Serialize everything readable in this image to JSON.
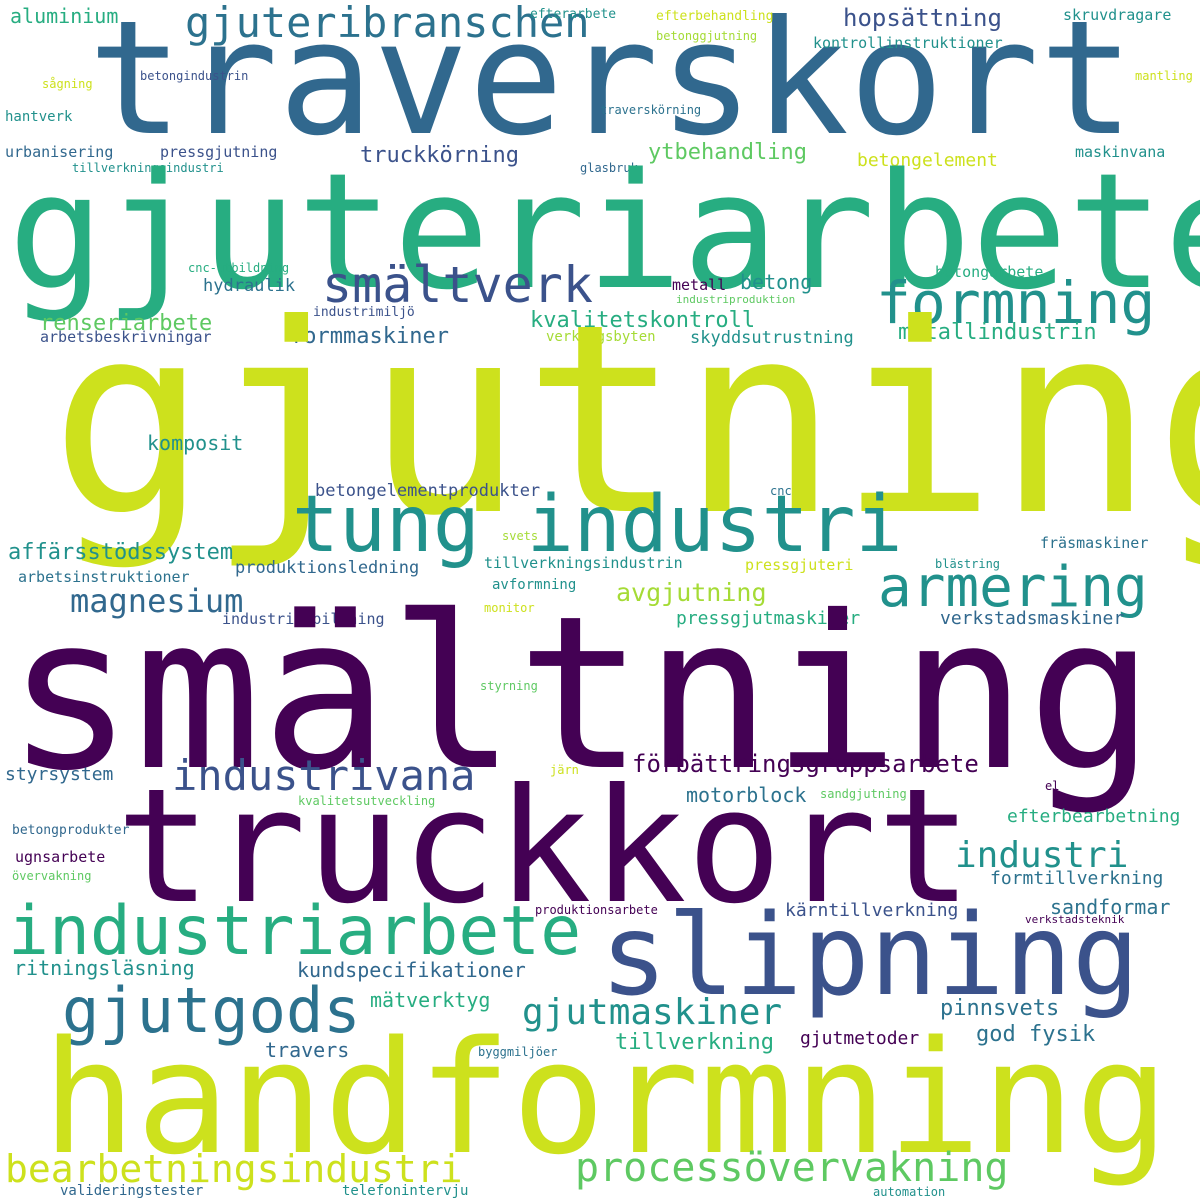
{
  "palette": {
    "dark_purple": "#440154",
    "indigo": "#3b528b",
    "blue": "#31688e",
    "teal_blue": "#2c728e",
    "teal": "#21918c",
    "sea_green": "#27ad81",
    "green": "#5ec962",
    "lime": "#a5db36",
    "yellow": "#cde11d",
    "yellow_light": "#e6e419"
  },
  "words": [
    "traverskort",
    "gjuteriarbete",
    "gjutning",
    "smältning",
    "truckkort",
    "handformning",
    "tung industri",
    "slipning",
    "industriarbete",
    "gjutgods",
    "armering",
    "formning",
    "smältverk",
    "industrivana",
    "processövervakning",
    "bearbetningsindustri",
    "gjuteribranschen",
    "magnesium",
    "industri",
    "gjutmaskiner",
    "hopsättning",
    "ytbehandling",
    "truckkörning",
    "kvalitetskontroll",
    "renseriarbete",
    "formmaskiner",
    "metallindustrin",
    "affärsstödssystem",
    "avgjutning",
    "förbättringsgruppsarbete",
    "motorblock",
    "betong",
    "komposit",
    "betongelementprodukter",
    "produktionsledning",
    "pressgjutmaskiner",
    "ritningsläsning",
    "kundspecifikationer",
    "mätverktyg",
    "travers",
    "tillverkning",
    "pinnsvets",
    "god fysik",
    "gjutmetoder",
    "kärntillverkning",
    "sandformar",
    "formtillverkning",
    "efterbearbetning",
    "verkstadsmaskiner",
    "fräsmaskiner",
    "aluminium",
    "skruvdragare",
    "kontrollinstruktioner",
    "maskinvana",
    "betongelement",
    "urbanisering",
    "pressgjutning",
    "hydraulik",
    "metall",
    "betongarbete",
    "skyddsutrustning",
    "arbetsbeskrivningar",
    "styrsystem",
    "ugnsarbete",
    "arbetsinstruktioner",
    "tillverkningsindustrin",
    "industriutbildning",
    "valideringstester",
    "telefonintervju",
    "hantverk",
    "efterarbete",
    "betongindustrin",
    "sågning",
    "efterbehandling",
    "betonggjutning",
    "mantling",
    "traverskörning",
    "tillverkningsindustri",
    "glasbruk",
    "cnc-utbildning",
    "industriproduktion",
    "industrimiljö",
    "verktygsbyten",
    "svets",
    "cnc",
    "blästring",
    "pressgjuteri",
    "avformning",
    "monitor",
    "styrning",
    "järn",
    "kvalitetsutveckling",
    "sandgjutning",
    "el",
    "betongprodukter",
    "övervakning",
    "produktionsarbete",
    "verkstadsteknik",
    "byggmiljöer",
    "automation"
  ]
}
